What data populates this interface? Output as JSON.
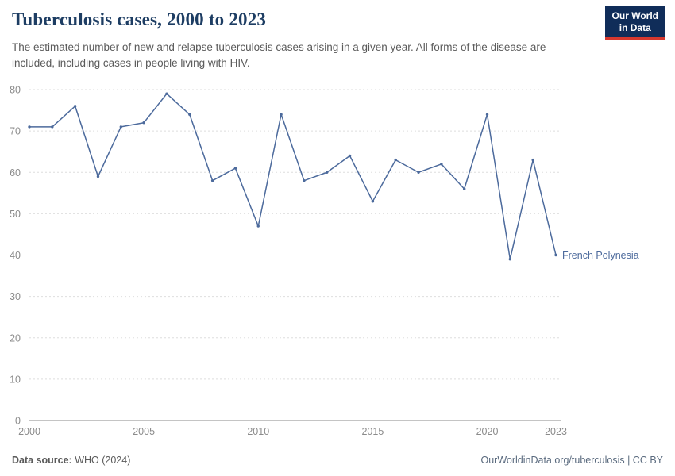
{
  "header": {
    "title": "Tuberculosis cases, 2000 to 2023",
    "subtitle": "The estimated number of new and relapse tuberculosis cases arising in a given year. All forms of the disease are included, including cases in people living with HIV.",
    "logo": {
      "line1": "Our World",
      "line2": "in Data",
      "bg": "#102d59",
      "accent": "#d7382e"
    }
  },
  "chart_data": {
    "type": "line",
    "title": "Tuberculosis cases, 2000 to 2023",
    "xlabel": "",
    "ylabel": "",
    "xlim": [
      2000,
      2023
    ],
    "ylim": [
      0,
      80
    ],
    "x_ticks": [
      2000,
      2005,
      2010,
      2015,
      2020,
      2023
    ],
    "y_ticks": [
      0,
      10,
      20,
      30,
      40,
      50,
      60,
      70,
      80
    ],
    "grid": "horizontal-dashed",
    "legend_position": "end-of-line",
    "series": [
      {
        "name": "French Polynesia",
        "color": "#4c6a9c",
        "x": [
          2000,
          2001,
          2002,
          2003,
          2004,
          2005,
          2006,
          2007,
          2008,
          2009,
          2010,
          2011,
          2012,
          2013,
          2014,
          2015,
          2016,
          2017,
          2018,
          2019,
          2020,
          2021,
          2022,
          2023
        ],
        "values": [
          71,
          71,
          76,
          59,
          71,
          72,
          79,
          74,
          58,
          61,
          47,
          74,
          58,
          60,
          64,
          53,
          63,
          60,
          62,
          56,
          74,
          39,
          63,
          40
        ]
      }
    ]
  },
  "footer": {
    "datasource_label": "Data source:",
    "datasource_value": "WHO (2024)",
    "right": "OurWorldinData.org/tuberculosis | CC BY"
  }
}
